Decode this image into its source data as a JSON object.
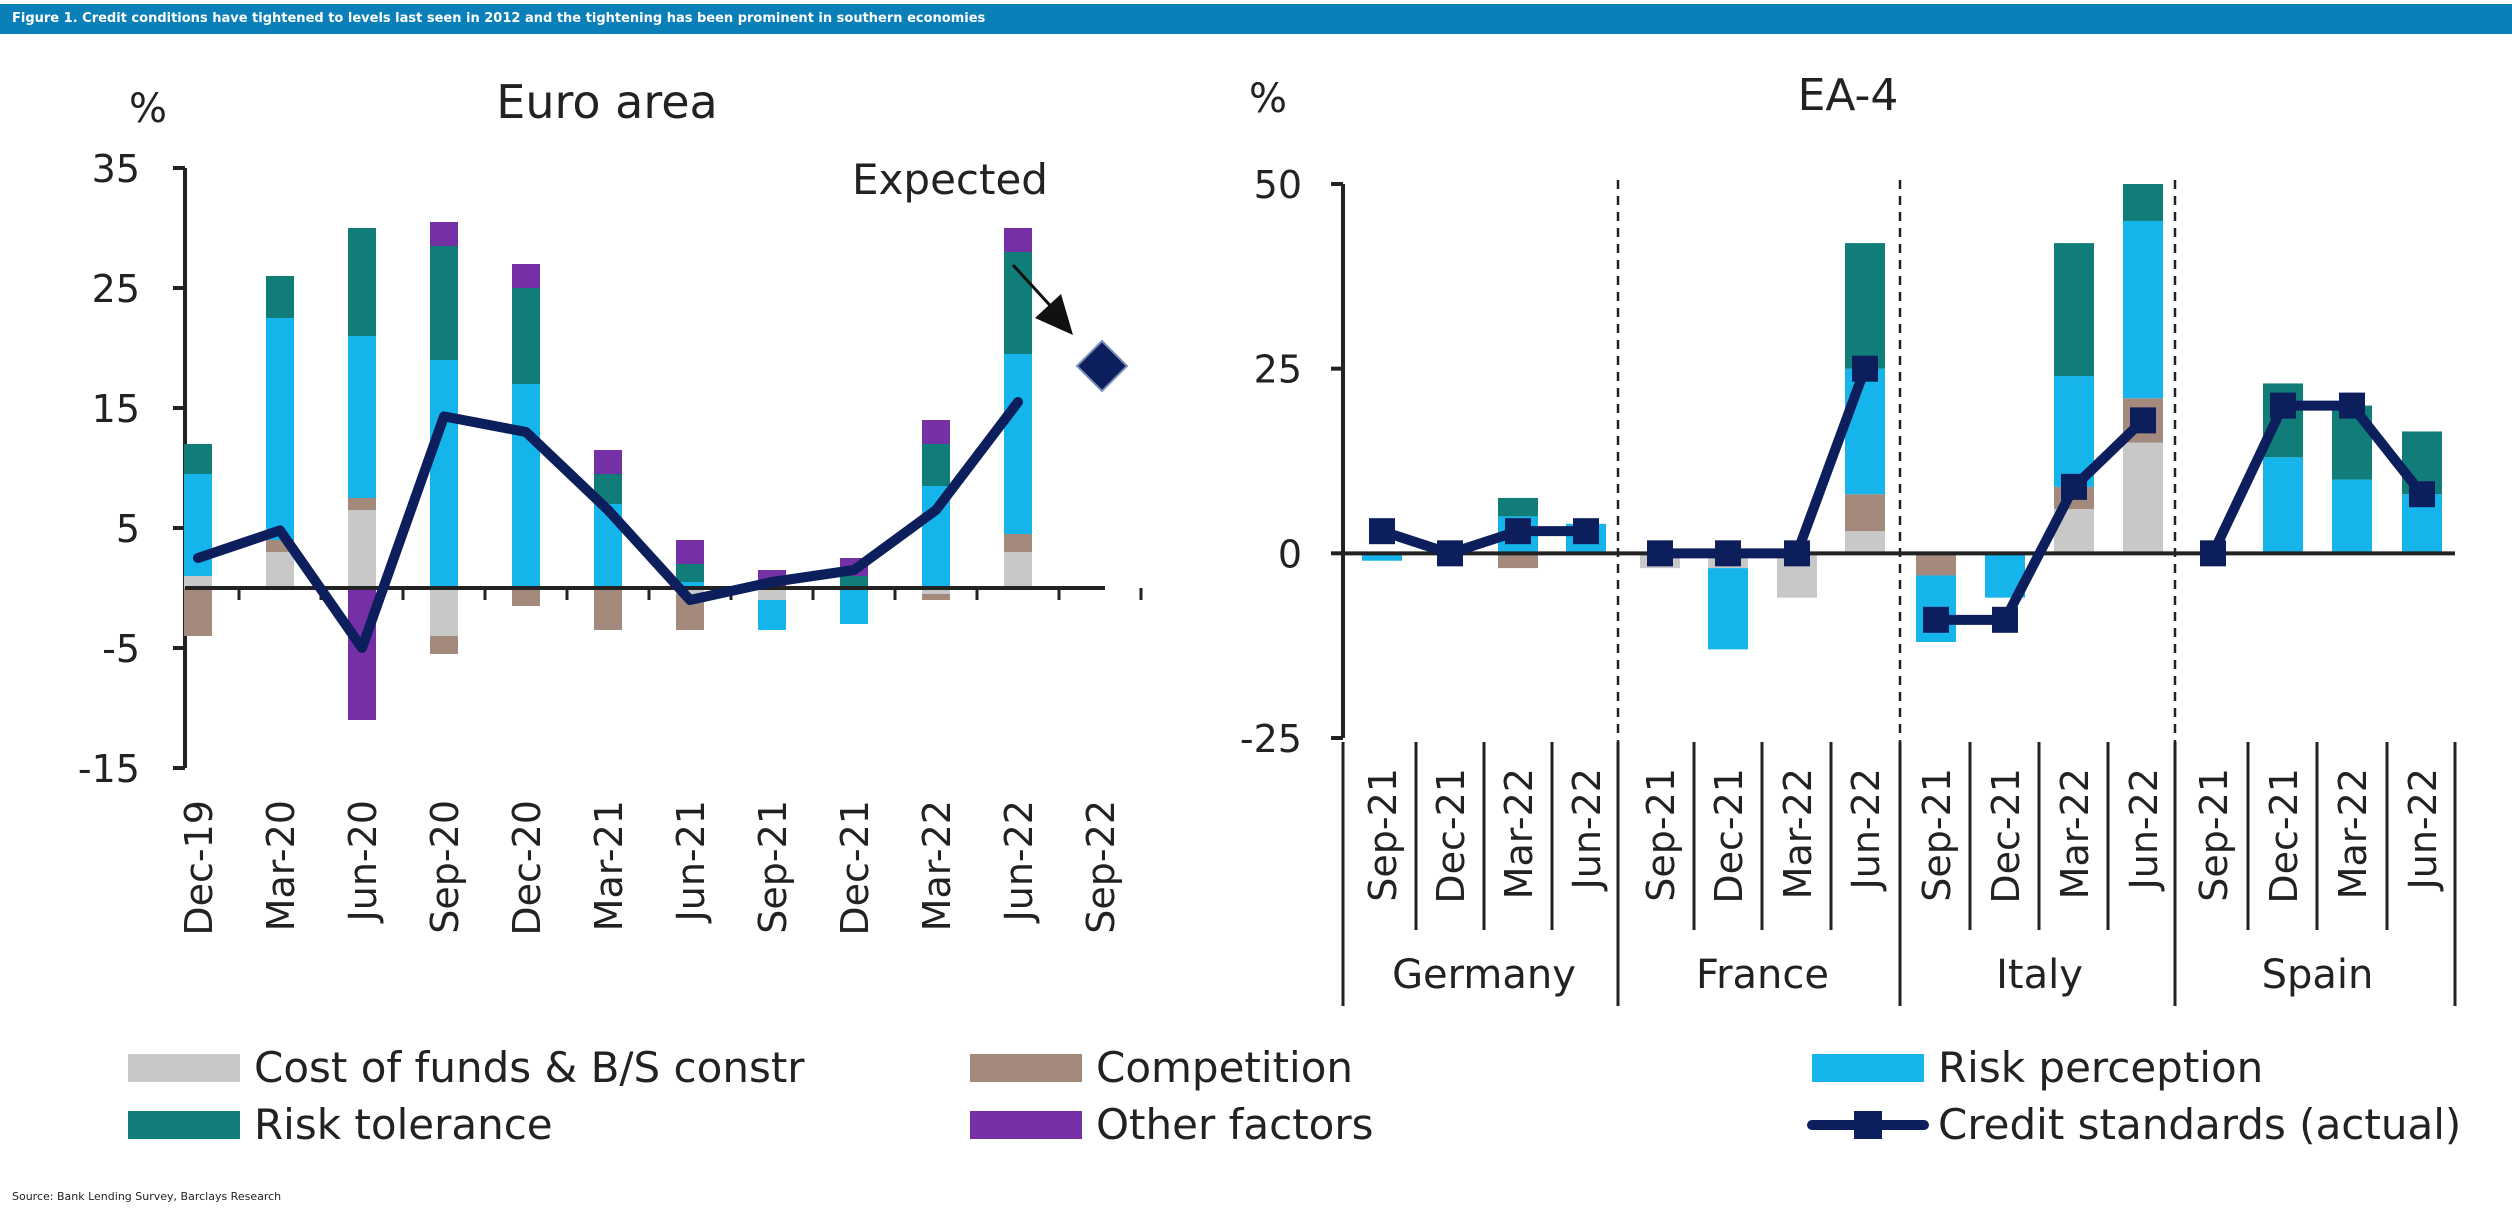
{
  "header": {
    "title": "Figure 1. Credit conditions have tightened to levels last seen in 2012 and the tightening has been prominent in southern economies"
  },
  "source": "Source: Bank Lending Survey, Barclays Research",
  "colors": {
    "cost_of_funds": "#c8c8c8",
    "competition": "#a38a7c",
    "risk_perception": "#15b4ea",
    "risk_tolerance": "#107d78",
    "other_factors": "#7530a6",
    "credit_standards": "#0c1f5c",
    "banner": "#0a7fb8"
  },
  "legend": [
    {
      "key": "cost_of_funds",
      "label": "Cost of funds & B/S constr",
      "type": "box"
    },
    {
      "key": "competition",
      "label": "Competition",
      "type": "box"
    },
    {
      "key": "risk_perception",
      "label": "Risk perception",
      "type": "box"
    },
    {
      "key": "risk_tolerance",
      "label": "Risk tolerance",
      "type": "box"
    },
    {
      "key": "other_factors",
      "label": "Other factors",
      "type": "box"
    },
    {
      "key": "credit_standards",
      "label": "Credit standards (actual)",
      "type": "line"
    }
  ],
  "chart_data": [
    {
      "type": "bar",
      "stacked": true,
      "title": "Euro area",
      "ylabel": "%",
      "ylim": [
        -15,
        35
      ],
      "yticks": [
        35,
        25,
        15,
        5,
        -5,
        -15
      ],
      "categories": [
        "Dec-19",
        "Mar-20",
        "Jun-20",
        "Sep-20",
        "Dec-20",
        "Mar-21",
        "Jun-21",
        "Sep-21",
        "Dec-21",
        "Mar-22",
        "Jun-22",
        "Sep-22"
      ],
      "series": [
        {
          "name": "Cost of funds & B/S constr",
          "key": "cost_of_funds",
          "values": [
            1,
            3,
            6.5,
            -4,
            0,
            0,
            -0.5,
            -1,
            0,
            -0.5,
            3,
            null
          ]
        },
        {
          "name": "Competition",
          "key": "competition",
          "values": [
            -4,
            1,
            1,
            -1.5,
            -1.5,
            -3.5,
            -3,
            0,
            0,
            -0.5,
            1.5,
            null
          ]
        },
        {
          "name": "Risk perception",
          "key": "risk_perception",
          "values": [
            8.5,
            18.5,
            13.5,
            19,
            17,
            7,
            0.5,
            -2.5,
            -3,
            8.5,
            15,
            null
          ]
        },
        {
          "name": "Risk tolerance",
          "key": "risk_tolerance",
          "values": [
            2.5,
            3.5,
            9,
            9.5,
            8,
            2.5,
            1.5,
            0,
            1,
            3.5,
            8.5,
            null
          ]
        },
        {
          "name": "Other factors",
          "key": "other_factors",
          "values": [
            0,
            0,
            -11,
            2,
            2,
            2,
            2,
            1.5,
            1.5,
            2,
            2,
            null
          ]
        }
      ],
      "line": {
        "name": "Credit standards (actual)",
        "key": "credit_standards",
        "values": [
          2.5,
          4.8,
          -5,
          14.3,
          13,
          6.5,
          -1,
          0.5,
          1.5,
          6.5,
          15.5,
          null
        ]
      },
      "expected": {
        "label": "Expected",
        "category": "Sep-22",
        "value": 18.5
      }
    },
    {
      "type": "bar",
      "stacked": true,
      "title": "EA-4",
      "ylabel": "%",
      "ylim": [
        -25,
        50
      ],
      "yticks": [
        50,
        25,
        0,
        -25
      ],
      "groups": [
        {
          "name": "Germany",
          "categories": [
            "Sep-21",
            "Dec-21",
            "Mar-22",
            "Jun-22"
          ]
        },
        {
          "name": "France",
          "categories": [
            "Sep-21",
            "Dec-21",
            "Mar-22",
            "Jun-22"
          ]
        },
        {
          "name": "Italy",
          "categories": [
            "Sep-21",
            "Dec-21",
            "Mar-22",
            "Jun-22"
          ]
        },
        {
          "name": "Spain",
          "categories": [
            "Sep-21",
            "Dec-21",
            "Mar-22",
            "Jun-22"
          ]
        }
      ],
      "series": [
        {
          "name": "Cost of funds & B/S constr",
          "key": "cost_of_funds",
          "values": [
            0,
            0,
            0,
            0,
            -2,
            -2,
            -6,
            3,
            0,
            0,
            6,
            15,
            0,
            0,
            0,
            0
          ]
        },
        {
          "name": "Competition",
          "key": "competition",
          "values": [
            0,
            0,
            -2,
            0,
            0,
            0,
            0,
            5,
            -3,
            0,
            3,
            6,
            0,
            0,
            0,
            0
          ]
        },
        {
          "name": "Risk perception",
          "key": "risk_perception",
          "values": [
            -1,
            0,
            5,
            4,
            0,
            -11,
            0,
            17,
            -9,
            -6,
            15,
            24,
            0,
            13,
            10,
            8
          ]
        },
        {
          "name": "Risk tolerance",
          "key": "risk_tolerance",
          "values": [
            0,
            0,
            2.5,
            0,
            0,
            0,
            0,
            17,
            0,
            0,
            18,
            5,
            0,
            10,
            10,
            8.5
          ]
        },
        {
          "name": "Other factors",
          "key": "other_factors",
          "values": [
            0,
            0,
            0,
            0,
            0,
            0,
            0,
            0,
            0,
            0,
            0,
            0,
            0,
            0,
            0,
            0
          ]
        }
      ],
      "line": {
        "name": "Credit standards (actual)",
        "key": "credit_standards",
        "values": [
          3,
          0,
          3,
          3,
          0,
          0,
          0,
          25,
          -9,
          -9,
          9,
          18,
          0,
          20,
          20,
          8
        ]
      }
    }
  ]
}
